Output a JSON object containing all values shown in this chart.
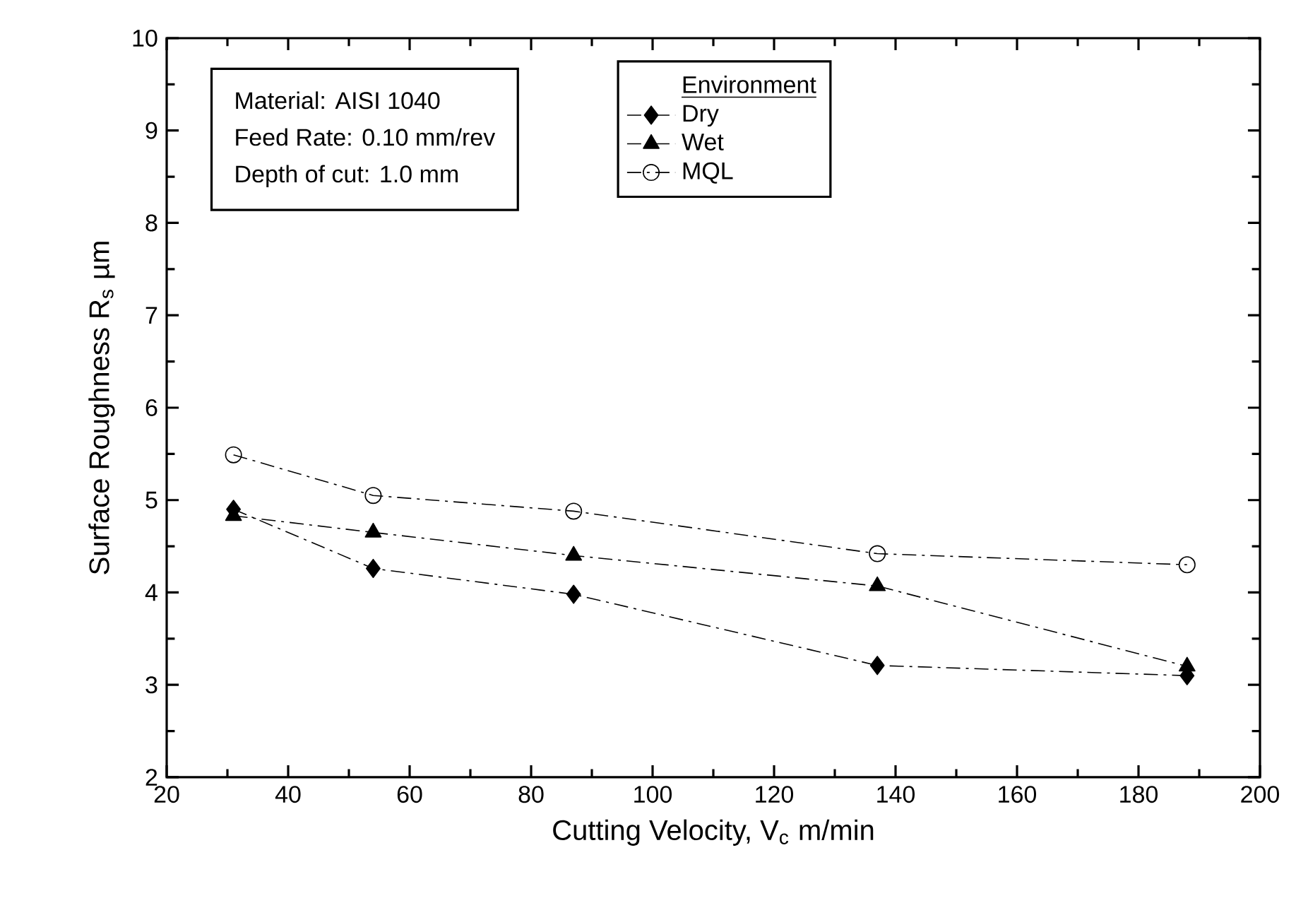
{
  "chart_data": {
    "type": "line",
    "xlabel": "Cutting Velocity, V$_{c}$ m/min",
    "ylabel": "Surface Roughness R$_{s}$ µm",
    "legend_title": "Environment",
    "annotations": [
      "Material: AISI 1040",
      "Feed Rate: 0.10 mm/rev",
      "Depth of cut: 1.0 mm"
    ],
    "x": [
      31,
      54,
      87,
      137,
      188
    ],
    "series": [
      {
        "name": "Dry",
        "color": "#000000",
        "marker": "diamond",
        "values": [
          4.9,
          4.26,
          3.98,
          3.21,
          3.1
        ]
      },
      {
        "name": "Wet",
        "color": "#000000",
        "marker": "triangle",
        "values": [
          4.83,
          4.65,
          4.4,
          4.07,
          3.2
        ]
      },
      {
        "name": "MQL",
        "color": "#000000",
        "marker": "circle",
        "values": [
          5.49,
          5.05,
          4.88,
          4.42,
          4.3
        ]
      }
    ],
    "xlim": [
      20,
      200
    ],
    "xticks": [
      20,
      40,
      60,
      80,
      100,
      120,
      140,
      160,
      180,
      200
    ],
    "ylim": [
      2,
      10
    ],
    "yticks": [
      2,
      3,
      4,
      5,
      6,
      7,
      8,
      9,
      10
    ],
    "grid": false,
    "legend": "top",
    "line_style": "dashed"
  }
}
